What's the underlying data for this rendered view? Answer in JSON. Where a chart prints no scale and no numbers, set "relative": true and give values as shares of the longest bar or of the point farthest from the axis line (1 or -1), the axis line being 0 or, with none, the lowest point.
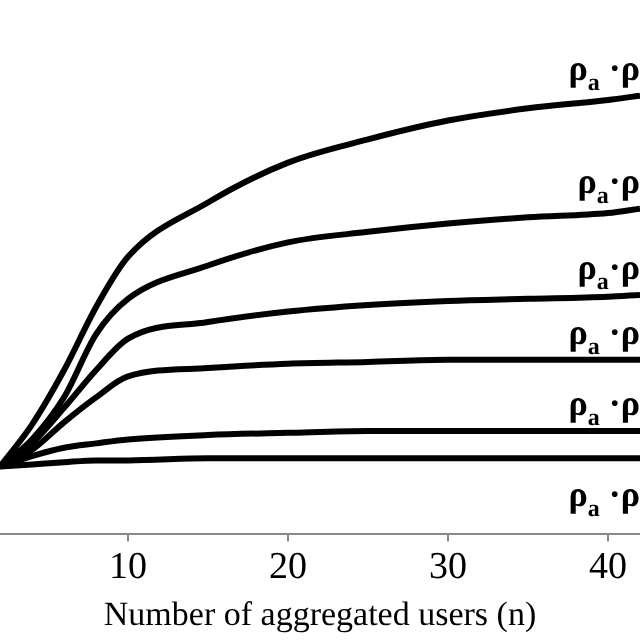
{
  "chart_data": {
    "type": "line",
    "xlabel": "Number of aggregated users (n)",
    "relative": true,
    "grid": false,
    "legend": false,
    "marker": "none",
    "line_style": "solid",
    "xlim": [
      2,
      42
    ],
    "xticks": [
      10,
      20,
      30,
      40
    ],
    "x": [
      2,
      4,
      6,
      8,
      10,
      15,
      20,
      25,
      30,
      35,
      40,
      42
    ],
    "series": [
      {
        "name": "ρ$_{a}$ ·ρ",
        "color": "#000000",
        "values": [
          0.153,
          0.249,
          0.373,
          0.517,
          0.632,
          0.756,
          0.847,
          0.9,
          0.943,
          0.971,
          0.99,
          1
        ]
      },
      {
        "name": "ρ$_{a}$·ρ",
        "color": "#000000",
        "values": [
          0.153,
          0.215,
          0.311,
          0.455,
          0.536,
          0.612,
          0.665,
          0.689,
          0.708,
          0.722,
          0.732,
          0.742
        ]
      },
      {
        "name": "ρ$_{a}$·ρ",
        "color": "#000000",
        "values": [
          0.153,
          0.206,
          0.287,
          0.373,
          0.445,
          0.483,
          0.507,
          0.522,
          0.531,
          0.536,
          0.541,
          0.545
        ]
      },
      {
        "name": "ρ$_{a}$ ·ρ",
        "color": "#000000",
        "values": [
          0.153,
          0.191,
          0.254,
          0.311,
          0.359,
          0.378,
          0.388,
          0.392,
          0.397,
          0.397,
          0.397,
          0.397
        ]
      },
      {
        "name": "ρ$_{a}$ ·ρ",
        "color": "#000000",
        "values": [
          0.153,
          0.177,
          0.196,
          0.206,
          0.215,
          0.225,
          0.23,
          0.234,
          0.234,
          0.234,
          0.234,
          0.234
        ]
      },
      {
        "name": "ρ$_{a}$ ·ρ",
        "color": "#000000",
        "values": [
          0.153,
          0.158,
          0.163,
          0.167,
          0.167,
          0.172,
          0.172,
          0.172,
          0.172,
          0.172,
          0.172,
          0.172
        ]
      }
    ]
  }
}
